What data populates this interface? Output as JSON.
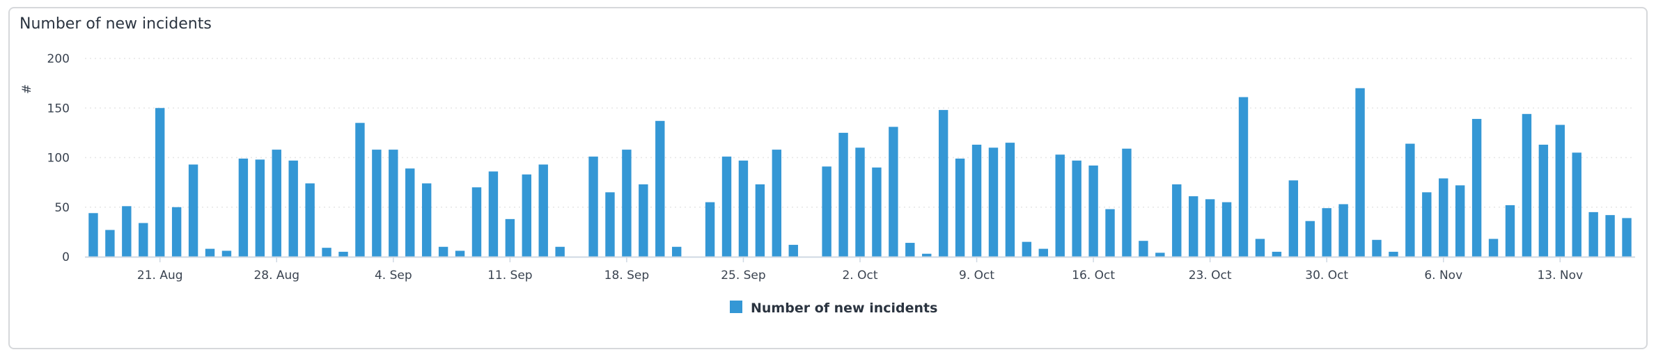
{
  "chart_data": {
    "type": "bar",
    "title": "Number of new incidents",
    "ylabel": "#",
    "ylim": [
      0,
      200
    ],
    "y_ticks": [
      "0",
      "50",
      "100",
      "150",
      "200"
    ],
    "x_ticks": [
      "21. Aug",
      "28. Aug",
      "4. Sep",
      "11. Sep",
      "18. Sep",
      "25. Sep",
      "2. Oct",
      "9. Oct",
      "16. Oct",
      "23. Oct",
      "30. Oct",
      "6. Nov",
      "13. Nov"
    ],
    "x_tick_day_index": [
      4,
      11,
      18,
      25,
      32,
      39,
      46,
      53,
      60,
      67,
      74,
      81,
      88
    ],
    "grid": true,
    "legend_position": "bottom-center",
    "series": [
      {
        "name": "Number of new incidents",
        "color": "#3497d5",
        "values": [
          44,
          27,
          51,
          34,
          150,
          50,
          93,
          8,
          6,
          99,
          98,
          108,
          97,
          74,
          9,
          5,
          135,
          108,
          108,
          89,
          74,
          10,
          6,
          70,
          86,
          38,
          83,
          93,
          10,
          null,
          101,
          65,
          108,
          73,
          137,
          10,
          null,
          55,
          101,
          97,
          73,
          108,
          12,
          null,
          91,
          125,
          110,
          90,
          131,
          14,
          3,
          148,
          99,
          113,
          110,
          115,
          15,
          8,
          103,
          97,
          92,
          48,
          109,
          16,
          4,
          73,
          61,
          58,
          55,
          161,
          18,
          5,
          77,
          36,
          49,
          53,
          170,
          17,
          5,
          114,
          65,
          79,
          72,
          139,
          18,
          52,
          144,
          113,
          133,
          105,
          45,
          42,
          39
        ]
      }
    ]
  }
}
